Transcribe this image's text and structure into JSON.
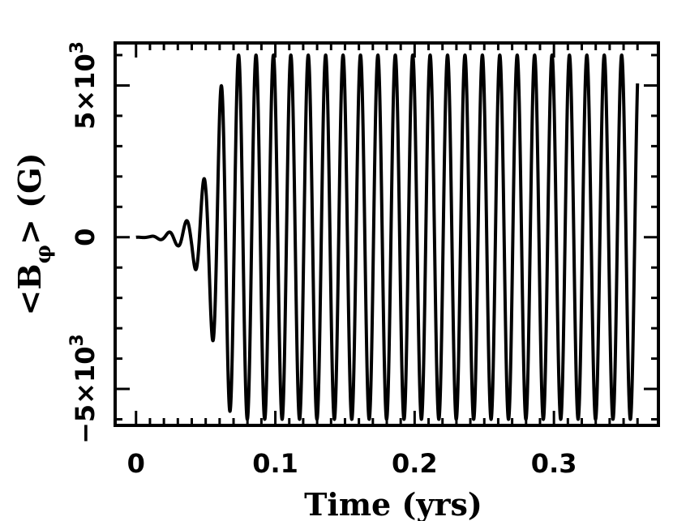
{
  "chart_data": {
    "type": "line",
    "title": "",
    "xlabel": "Time (yrs)",
    "ylabel": "<B",
    "ylabel_subscript": "φ",
    "ylabel_suffix": "> (G)",
    "xlim": [
      -0.015,
      0.375
    ],
    "ylim": [
      -6200,
      6400
    ],
    "x_ticks": [
      {
        "value": 0,
        "label": "0"
      },
      {
        "value": 0.1,
        "label": "0.1"
      },
      {
        "value": 0.2,
        "label": "0.2"
      },
      {
        "value": 0.3,
        "label": "0.3"
      }
    ],
    "y_ticks": [
      {
        "value": -5000,
        "label": "−5×10",
        "exp": "3"
      },
      {
        "value": 0,
        "label": "0",
        "exp": ""
      },
      {
        "value": 5000,
        "label": "5×10",
        "exp": "3"
      }
    ],
    "signal": {
      "period_yrs": 0.0125,
      "saturation_amplitude": 6000,
      "onset_time_yrs": 0.008,
      "growth_envelope": [
        {
          "t": 0.0,
          "amp": 0
        },
        {
          "t": 0.01,
          "amp": 20
        },
        {
          "t": 0.02,
          "amp": 100
        },
        {
          "t": 0.03,
          "amp": 280
        },
        {
          "t": 0.04,
          "amp": 700
        },
        {
          "t": 0.05,
          "amp": 2100
        },
        {
          "t": 0.055,
          "amp": 3400
        },
        {
          "t": 0.06,
          "amp": 4800
        },
        {
          "t": 0.065,
          "amp": 5600
        },
        {
          "t": 0.072,
          "amp": 6000
        },
        {
          "t": 0.36,
          "amp": 6000
        }
      ],
      "t_end": 0.36
    },
    "grid": false,
    "legend": "none"
  }
}
